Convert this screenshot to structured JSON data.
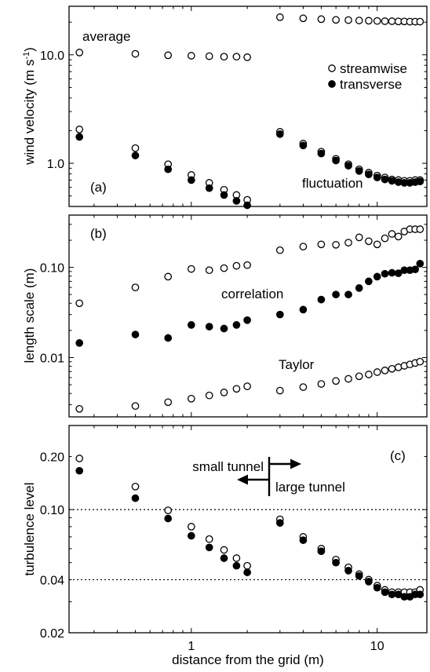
{
  "chart_data": [
    {
      "id": "a",
      "type": "scatter",
      "panel_label": "(a)",
      "ylabel": "wind velocity (m s-1)",
      "ylabel_parts": [
        "wind velocity (m s",
        "-1",
        ")"
      ],
      "xscale": "log",
      "yscale": "log",
      "xlim": [
        0.22,
        18.5
      ],
      "ylim": [
        0.4,
        28
      ],
      "yticks": [
        1.0,
        10.0
      ],
      "ytick_labels": [
        "1.0",
        "10.0"
      ],
      "legend": {
        "placement": "top-right",
        "entries": [
          "streamwise",
          "transverse"
        ]
      },
      "annotations": [
        "average",
        "fluctuation"
      ],
      "series": [
        {
          "name": "streamwise",
          "role": "average",
          "marker": "open",
          "x": [
            0.25,
            0.5,
            0.75,
            1.0,
            1.25,
            1.5,
            1.75,
            2.0,
            3,
            4,
            5,
            6,
            7,
            8,
            9,
            10,
            11,
            12,
            13,
            14,
            15,
            16,
            17
          ],
          "y": [
            10.5,
            10.2,
            9.9,
            9.8,
            9.7,
            9.6,
            9.6,
            9.5,
            22.2,
            21.7,
            21.3,
            21.0,
            20.9,
            20.7,
            20.6,
            20.5,
            20.4,
            20.4,
            20.3,
            20.3,
            20.2,
            20.2,
            20.2
          ]
        },
        {
          "name": "streamwise",
          "role": "fluctuation",
          "marker": "open",
          "x": [
            0.25,
            0.5,
            0.75,
            1.0,
            1.25,
            1.5,
            1.75,
            2.0,
            3,
            4,
            5,
            6,
            7,
            8,
            9,
            10,
            11,
            12,
            13,
            14,
            15,
            16,
            17
          ],
          "y": [
            2.05,
            1.38,
            0.98,
            0.78,
            0.66,
            0.57,
            0.51,
            0.46,
            1.95,
            1.52,
            1.28,
            1.1,
            0.98,
            0.88,
            0.82,
            0.77,
            0.74,
            0.71,
            0.7,
            0.69,
            0.69,
            0.7,
            0.7
          ]
        },
        {
          "name": "transverse",
          "role": "fluctuation",
          "marker": "filled",
          "x": [
            0.25,
            0.5,
            0.75,
            1.0,
            1.25,
            1.5,
            1.75,
            2.0,
            3,
            4,
            5,
            6,
            7,
            8,
            9,
            10,
            11,
            12,
            13,
            14,
            15,
            16,
            17
          ],
          "y": [
            1.75,
            1.18,
            0.88,
            0.7,
            0.59,
            0.51,
            0.45,
            0.41,
            1.86,
            1.46,
            1.23,
            1.06,
            0.95,
            0.85,
            0.79,
            0.74,
            0.71,
            0.69,
            0.67,
            0.66,
            0.66,
            0.67,
            0.68
          ]
        }
      ]
    },
    {
      "id": "b",
      "type": "scatter",
      "panel_label": "(b)",
      "ylabel": "length scale (m)",
      "xscale": "log",
      "yscale": "log",
      "xlim": [
        0.22,
        18.5
      ],
      "ylim": [
        0.0022,
        0.38
      ],
      "yticks": [
        0.01,
        0.1
      ],
      "ytick_labels": [
        "0.01",
        "0.10"
      ],
      "annotations": [
        "correlation",
        "Taylor"
      ],
      "series": [
        {
          "role": "correlation streamwise",
          "marker": "open",
          "x": [
            0.25,
            0.5,
            0.75,
            1.0,
            1.25,
            1.5,
            1.75,
            2.0,
            3,
            4,
            5,
            6,
            7,
            8,
            9,
            10,
            11,
            12,
            13,
            14,
            15,
            16,
            17
          ],
          "y": [
            0.04,
            0.06,
            0.079,
            0.096,
            0.093,
            0.098,
            0.104,
            0.106,
            0.155,
            0.17,
            0.18,
            0.178,
            0.188,
            0.215,
            0.195,
            0.18,
            0.21,
            0.235,
            0.22,
            0.25,
            0.265,
            0.265,
            0.265
          ]
        },
        {
          "role": "correlation transverse",
          "marker": "filled",
          "x": [
            0.25,
            0.5,
            0.75,
            1.0,
            1.25,
            1.5,
            1.75,
            2.0,
            3,
            4,
            5,
            6,
            7,
            8,
            9,
            10,
            11,
            12,
            13,
            14,
            15,
            16,
            17
          ],
          "y": [
            0.0145,
            0.018,
            0.0165,
            0.023,
            0.022,
            0.021,
            0.023,
            0.026,
            0.03,
            0.034,
            0.044,
            0.05,
            0.05,
            0.059,
            0.07,
            0.079,
            0.085,
            0.087,
            0.086,
            0.093,
            0.093,
            0.095,
            0.11
          ]
        },
        {
          "role": "Taylor",
          "marker": "open",
          "x": [
            0.25,
            0.5,
            0.75,
            1.0,
            1.25,
            1.5,
            1.75,
            2.0,
            3,
            4,
            5,
            6,
            7,
            8,
            9,
            10,
            11,
            12,
            13,
            14,
            15,
            16,
            17
          ],
          "y": [
            0.0027,
            0.0029,
            0.0032,
            0.0035,
            0.0038,
            0.0041,
            0.0045,
            0.0048,
            0.0043,
            0.0047,
            0.0051,
            0.0055,
            0.0058,
            0.0062,
            0.0065,
            0.0069,
            0.0072,
            0.0075,
            0.0078,
            0.0081,
            0.0084,
            0.0087,
            0.009
          ]
        }
      ]
    },
    {
      "id": "c",
      "type": "scatter",
      "panel_label": "(c)",
      "ylabel": "turbulence level",
      "xlabel": "distance from the grid (m)",
      "xscale": "log",
      "yscale": "log",
      "xlim": [
        0.22,
        18.5
      ],
      "ylim": [
        0.02,
        0.3
      ],
      "xticks": [
        1,
        10
      ],
      "xtick_labels": [
        "1",
        "10"
      ],
      "yticks": [
        0.02,
        0.04,
        0.1,
        0.2
      ],
      "ytick_labels": [
        "0.02",
        "0.04",
        "0.10",
        "0.20"
      ],
      "reference_lines": [
        0.1,
        0.04
      ],
      "annotations": [
        "small tunnel",
        "large tunnel"
      ],
      "series": [
        {
          "name": "streamwise",
          "marker": "open",
          "x": [
            0.25,
            0.5,
            0.75,
            1.0,
            1.25,
            1.5,
            1.75,
            2.0,
            3,
            4,
            5,
            6,
            7,
            8,
            9,
            10,
            11,
            12,
            13,
            14,
            15,
            16,
            17
          ],
          "y": [
            0.195,
            0.135,
            0.099,
            0.08,
            0.068,
            0.059,
            0.053,
            0.048,
            0.088,
            0.07,
            0.06,
            0.052,
            0.047,
            0.043,
            0.04,
            0.037,
            0.035,
            0.034,
            0.034,
            0.034,
            0.034,
            0.034,
            0.035
          ]
        },
        {
          "name": "transverse",
          "marker": "filled",
          "x": [
            0.25,
            0.5,
            0.75,
            1.0,
            1.25,
            1.5,
            1.75,
            2.0,
            3,
            4,
            5,
            6,
            7,
            8,
            9,
            10,
            11,
            12,
            13,
            14,
            15,
            16,
            17
          ],
          "y": [
            0.166,
            0.116,
            0.089,
            0.071,
            0.061,
            0.053,
            0.048,
            0.044,
            0.084,
            0.067,
            0.058,
            0.05,
            0.045,
            0.042,
            0.039,
            0.036,
            0.034,
            0.033,
            0.033,
            0.032,
            0.032,
            0.033,
            0.033
          ]
        }
      ]
    }
  ]
}
